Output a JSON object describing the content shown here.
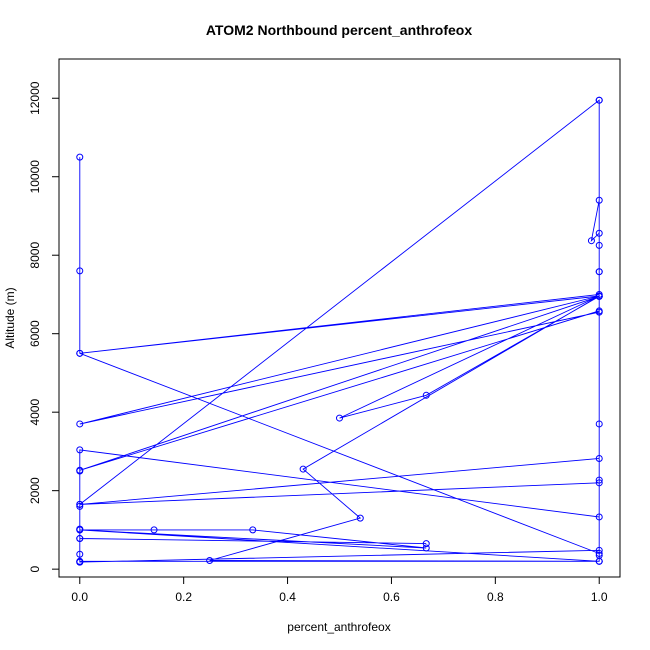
{
  "chart_data": {
    "type": "line",
    "title": "ATOM2 Northbound percent_anthrofeox",
    "xlabel": "percent_anthrofeox",
    "ylabel": "Altitude (m)",
    "xlim": [
      -0.04,
      1.04
    ],
    "ylim": [
      -200,
      13000
    ],
    "x_ticks": [
      0.0,
      0.2,
      0.4,
      0.6,
      0.8,
      1.0
    ],
    "x_tick_labels": [
      "0.0",
      "0.2",
      "0.4",
      "0.6",
      "0.8",
      "1.0"
    ],
    "y_ticks": [
      0,
      2000,
      4000,
      6000,
      8000,
      10000,
      12000
    ],
    "y_tick_labels": [
      "0",
      "2000",
      "4000",
      "6000",
      "8000",
      "10000",
      "12000"
    ],
    "grid": false,
    "legend": "none",
    "series": [
      {
        "line_color": "#0000ff",
        "marker": "open-circle",
        "x": [
          0.0,
          0.0,
          0.0,
          1.0,
          1.0,
          1.0,
          1.0,
          0.0,
          1.0,
          1.0,
          0.985,
          1.0,
          1.0,
          1.0,
          1.0,
          0.0,
          1.0,
          0.0,
          1.0,
          1.0,
          0.0,
          1.0,
          1.0,
          1.0,
          0.0,
          1.0,
          1.0,
          1.0,
          0.0,
          0.0,
          0.0,
          0.0,
          0.0,
          1.0,
          0.0,
          0.143,
          0.333,
          0.667,
          0.0,
          0.0,
          0.667,
          0.0,
          0.0,
          0.0,
          0.0,
          1.0,
          1.0,
          0.25,
          0.54,
          0.43,
          1.0,
          0.5,
          0.667,
          1.0,
          1.0
        ],
        "y": [
          10500,
          7600,
          5500,
          400,
          200,
          350,
          11950,
          1650,
          11950,
          9400,
          8370,
          8560,
          8250,
          7580,
          7000,
          5500,
          6960,
          3700,
          6550,
          6580,
          2520,
          6950,
          3700,
          2820,
          1650,
          2200,
          2270,
          1330,
          3040,
          2500,
          1600,
          1020,
          200,
          200,
          1000,
          1000,
          1000,
          540,
          1000,
          780,
          650,
          780,
          380,
          180,
          180,
          480,
          200,
          220,
          1300,
          2550,
          6960,
          3850,
          4430,
          6950,
          7580
        ]
      }
    ]
  }
}
